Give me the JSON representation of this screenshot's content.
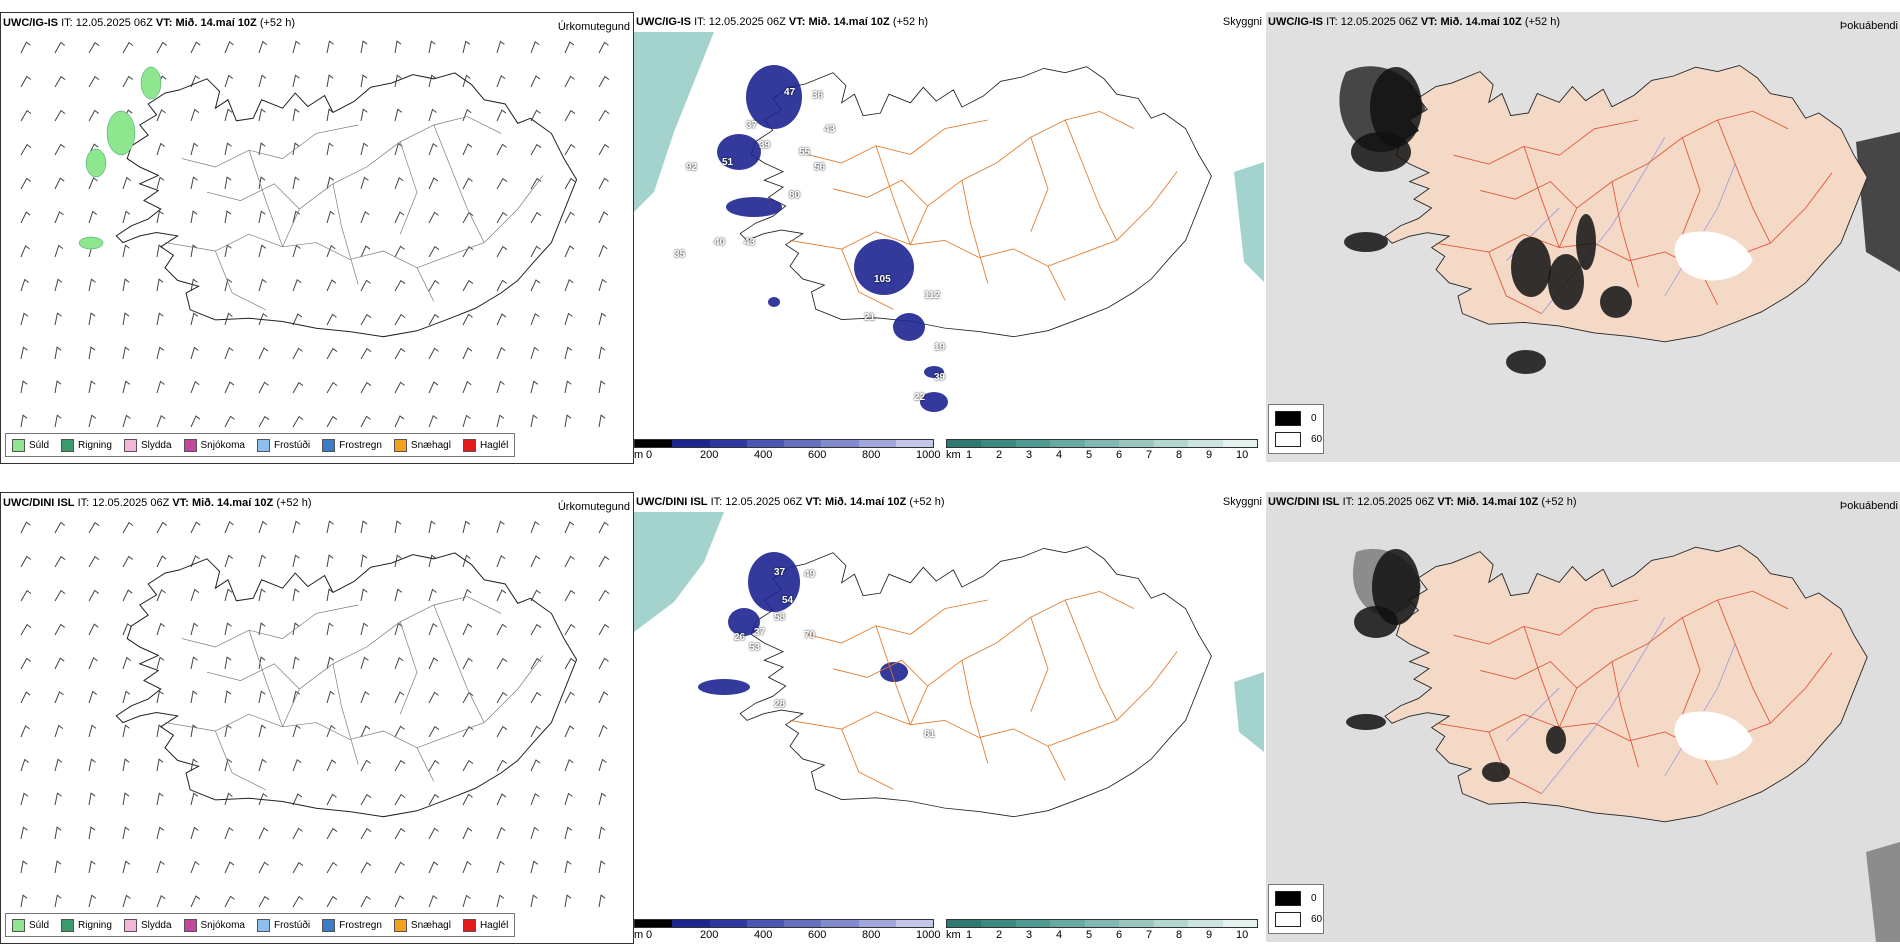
{
  "runs": [
    {
      "model": "UWC/IG-IS",
      "it_label": "IT:",
      "it_value": "12.05.2025 06Z",
      "vt_label": "VT:",
      "vt_value": "Mið. 14.maí 10Z",
      "lead": "(+52 h)"
    },
    {
      "model": "UWC/DINI ISL",
      "it_label": "IT:",
      "it_value": "12.05.2025 06Z",
      "vt_label": "VT:",
      "vt_value": "Mið. 14.maí 10Z",
      "lead": "(+52 h)"
    }
  ],
  "panel_titles": {
    "precip": "Úrkomutegund",
    "cloud": "Skyggni",
    "fog": "Þokuábendi"
  },
  "precip_legend": [
    {
      "label": "Súld",
      "color": "#8ee68e"
    },
    {
      "label": "Rigning",
      "color": "#3b9a6b"
    },
    {
      "label": "Slydda",
      "color": "#f4b6d8"
    },
    {
      "label": "Snjókoma",
      "color": "#c2479c"
    },
    {
      "label": "Frostúði",
      "color": "#8fbff0"
    },
    {
      "label": "Frostregn",
      "color": "#3a7cc8"
    },
    {
      "label": "Snæhagl",
      "color": "#f2a21e"
    },
    {
      "label": "Haglél",
      "color": "#e31b1b"
    }
  ],
  "cloud_base_scale": {
    "unit": "m",
    "ticks": [
      "0",
      "200",
      "400",
      "600",
      "800",
      "1000"
    ]
  },
  "visibility_scale": {
    "unit": "km",
    "ticks": [
      "1",
      "2",
      "3",
      "4",
      "5",
      "6",
      "7",
      "8",
      "9",
      "10"
    ]
  },
  "fog_legend": {
    "values": [
      "0",
      "60"
    ]
  },
  "cloud_labels_top": [
    "47",
    "36",
    "37",
    "43",
    "39",
    "55",
    "56",
    "92",
    "51",
    "80",
    "40",
    "35",
    "43",
    "105",
    "112",
    "21",
    "19",
    "39",
    "22"
  ],
  "cloud_labels_bottom": [
    "37",
    "49",
    "54",
    "58",
    "70",
    "37",
    "53",
    "26",
    "28",
    "81"
  ],
  "colors": {
    "map_road": "#e07a2a",
    "fog_land": "#f3d9c6",
    "fog_road": "#e2553a",
    "fog_river": "#8a93e8",
    "teal": "#4aa69a",
    "navy": "#1d2591"
  }
}
